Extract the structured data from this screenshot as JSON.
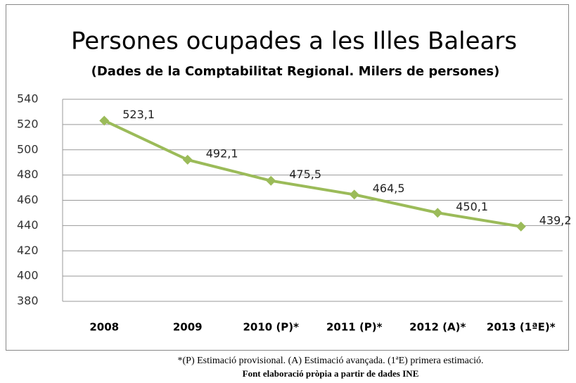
{
  "chart_data": {
    "type": "line",
    "title": "Persones ocupades a les Illes Balears",
    "subtitle": "(Dades de la Comptabilitat Regional. Milers de persones)",
    "categories": [
      "2008",
      "2009",
      "2010 (P)*",
      "2011 (P)*",
      "2012 (A)*",
      "2013 (1ªE)*"
    ],
    "values": [
      523.1,
      492.1,
      475.5,
      464.5,
      450.1,
      439.2
    ],
    "value_labels": [
      "523,1",
      "492,1",
      "475,5",
      "464,5",
      "450,1",
      "439,2"
    ],
    "color": "#9bbb59",
    "ylim": [
      380,
      540
    ],
    "yticks": [
      380,
      400,
      420,
      440,
      460,
      480,
      500,
      520,
      540
    ],
    "grid": true
  },
  "notes": [
    "*(P) Estimació provisional. (A) Estimació avançada. (1ªE) primera estimació.",
    "Font elaboració pròpia a partir de dades INE"
  ]
}
